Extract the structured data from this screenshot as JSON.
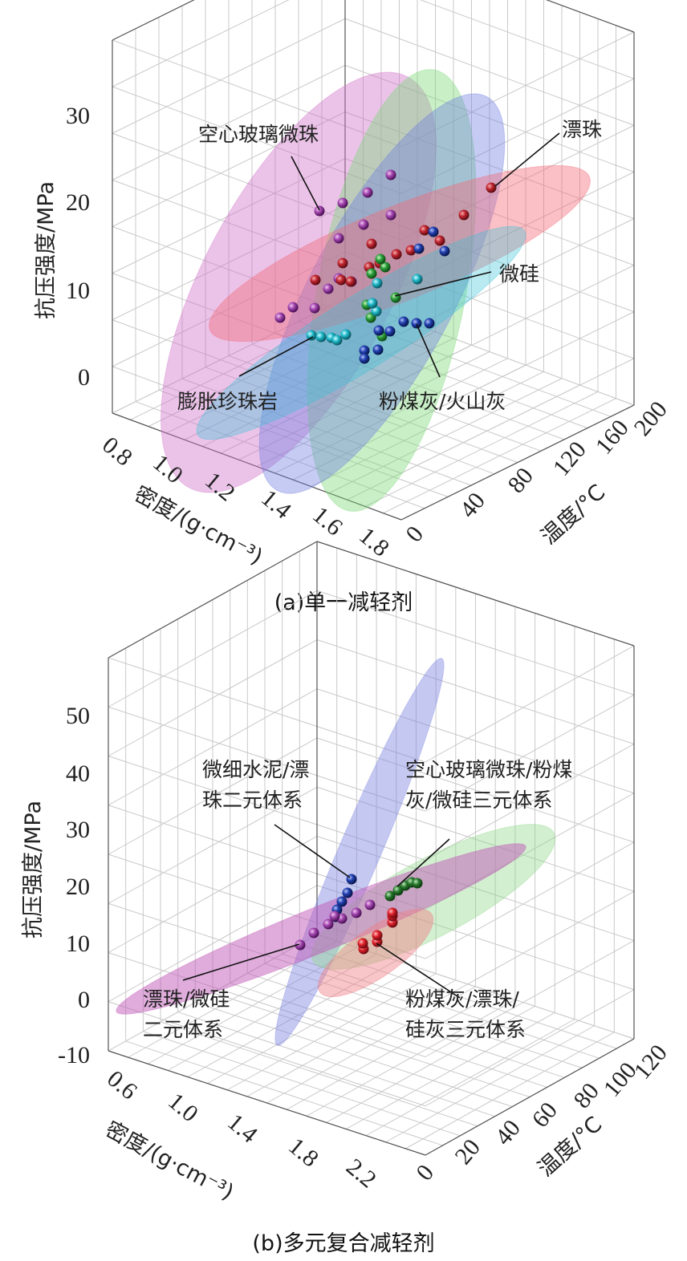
{
  "chart_data": [
    {
      "type": "scatter",
      "caption": "(a)单一减轻剂",
      "xlabel": "密度/(g·cm⁻³)",
      "ylabel": "温度/°C",
      "zlabel": "抗压强度/MPa",
      "xticks": [
        "0.8",
        "1.0",
        "1.2",
        "1.4",
        "1.6",
        "1.8"
      ],
      "yticks": [
        "0",
        "40",
        "80",
        "120",
        "160",
        "200"
      ],
      "zticks": [
        "0",
        "10",
        "20",
        "30"
      ],
      "grid": true,
      "series": [
        {
          "name": "空心玻璃微珠",
          "color": "#9b3aa6",
          "ellipse_color": "#d070c8",
          "strength_mpa": [
            6.5,
            7.8,
            7.5,
            9.8,
            11.0,
            15.5,
            17.3,
            18.5,
            19.6,
            20.9,
            22.8,
            18.6
          ]
        },
        {
          "name": "漂珠",
          "color": "#b3202a",
          "ellipse_color": "#f26a78",
          "strength_mpa": [
            21.5,
            18.5,
            16.5,
            15.8,
            14.2,
            13.2,
            12.8,
            12.3,
            11.0,
            10.5,
            15.0
          ]
        },
        {
          "name": "微硅",
          "color": "#2aa83a",
          "ellipse_color": "#7fd97a",
          "strength_mpa": [
            8.0,
            9.0,
            12.2,
            13.0,
            13.8,
            6.0,
            4.5
          ]
        },
        {
          "name": "膨胀珍珠岩",
          "color": "#1fb9c9",
          "ellipse_color": "#36c2d6",
          "strength_mpa": [
            4.7,
            4.6,
            4.5,
            4.4,
            4.3,
            4.4,
            4.6,
            4.8,
            11.0,
            10.8,
            7.8,
            7.2
          ]
        },
        {
          "name": "粉煤灰/火山灰",
          "color": "#1f3aa8",
          "ellipse_color": "#6f7ee0",
          "strength_mpa": [
            2.5,
            3.0,
            2.7,
            3.2,
            5.0,
            6.0,
            6.0,
            6.1,
            14.5,
            16.5,
            16.0,
            14.0
          ]
        }
      ],
      "labels": [
        "空心玻璃微珠",
        "漂珠",
        "微硅",
        "膨胀珍珠岩",
        "粉煤灰/火山灰"
      ]
    },
    {
      "type": "scatter",
      "caption": "(b)多元复合减轻剂",
      "xlabel": "密度/(g·cm⁻³)",
      "ylabel": "温度/°C",
      "zlabel": "抗压强度/MPa",
      "xticks": [
        "0.6",
        "1.0",
        "1.4",
        "1.8",
        "2.2"
      ],
      "yticks": [
        "0",
        "20",
        "40",
        "60",
        "80",
        "100",
        "120"
      ],
      "zticks": [
        "-10",
        "0",
        "10",
        "20",
        "30",
        "40",
        "50"
      ],
      "grid": true,
      "series": [
        {
          "name": "微细水泥/漂珠二元体系",
          "color": "#1f3aa8",
          "ellipse_color": "#7f86e0",
          "strength_mpa": [
            21.0,
            19.0,
            17.5,
            16.0,
            15.0
          ]
        },
        {
          "name": "空心玻璃微珠/粉煤灰/微硅三元体系",
          "color": "#2a7a30",
          "ellipse_color": "#8fd88a",
          "strength_mpa": [
            18.5,
            19.2,
            19.8,
            20.3,
            20.6,
            20.6
          ]
        },
        {
          "name": "漂珠/微硅二元体系",
          "color": "#9b3aa6",
          "ellipse_color": "#c05ab8",
          "strength_mpa": [
            9.8,
            11.5,
            13.0,
            14.5,
            15.8,
            16.5,
            13.5
          ]
        },
        {
          "name": "粉煤灰/漂珠/硅灰三元体系",
          "color": "#d0202a",
          "ellipse_color": "#f07e86",
          "strength_mpa": [
            9.0,
            9.5,
            10.0,
            10.5,
            13.5,
            14.0,
            14.5
          ]
        }
      ],
      "labels": [
        "微细水泥/漂\n珠二元体系",
        "空心玻璃微珠/粉煤\n灰/微硅三元体系",
        "漂珠/微硅\n二元体系",
        "粉煤灰/漂珠/\n硅灰三元体系"
      ]
    }
  ]
}
